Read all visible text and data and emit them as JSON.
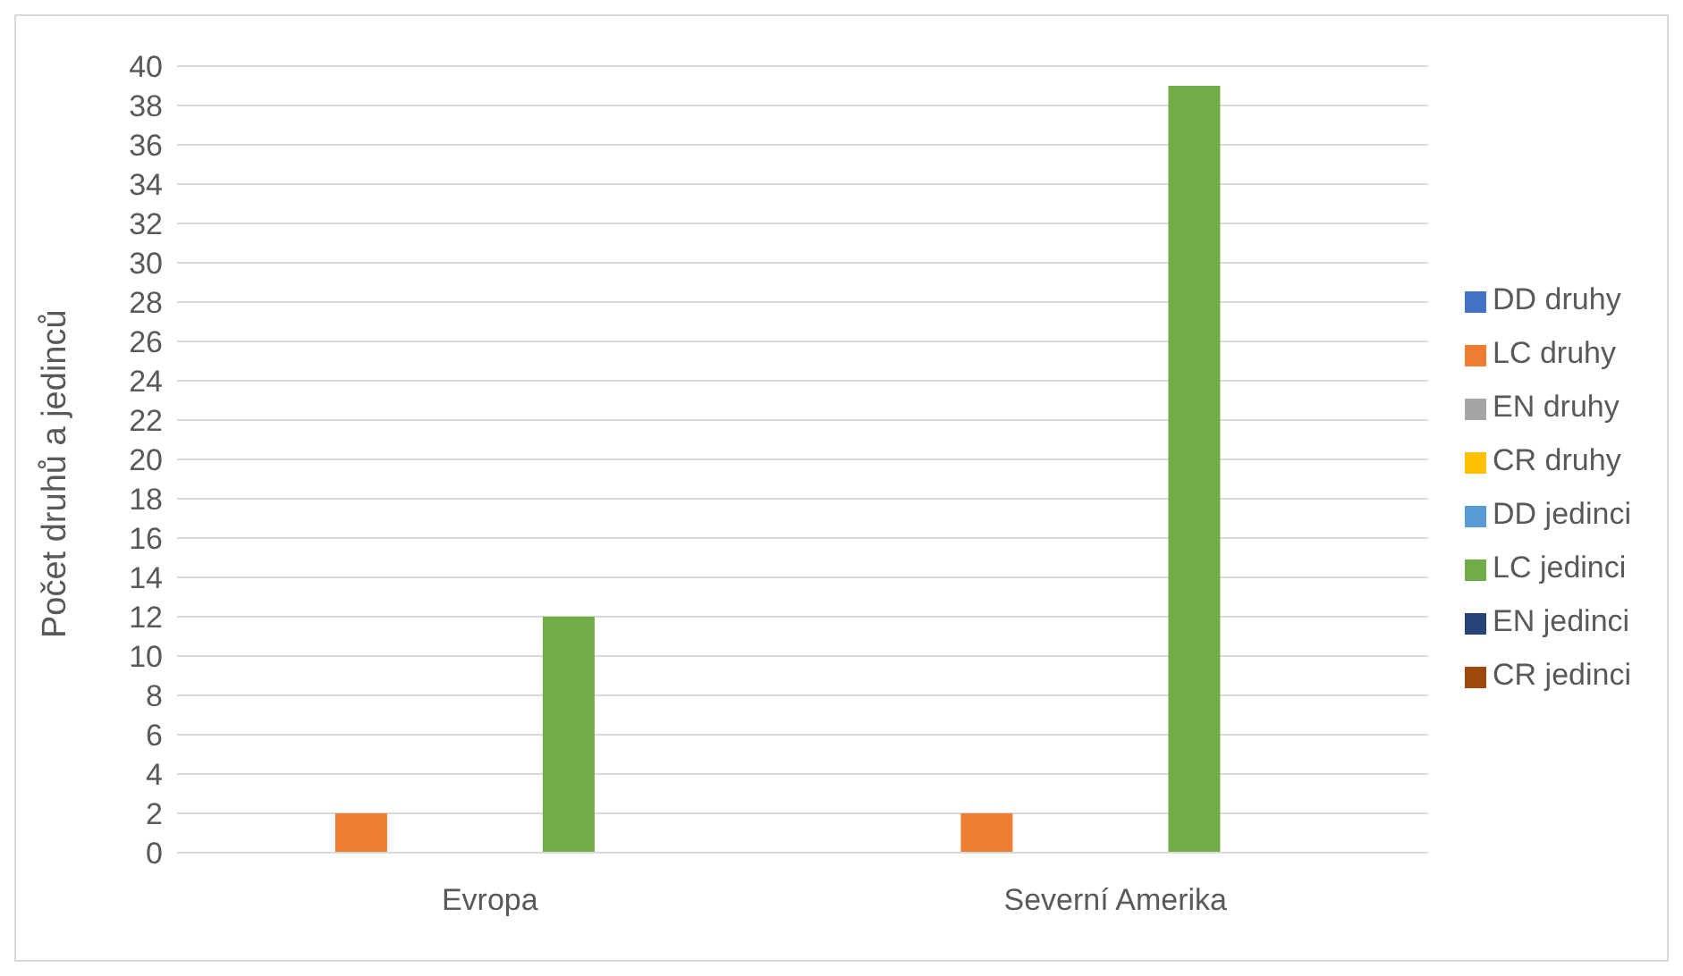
{
  "chart_data": {
    "type": "bar",
    "ylabel": "Počet druhů a jedinců",
    "categories": [
      "Evropa",
      "Severní Amerika"
    ],
    "series": [
      {
        "name": "DD druhy",
        "color": "#4472c4",
        "values": [
          0,
          0
        ]
      },
      {
        "name": "LC druhy",
        "color": "#ed7d31",
        "values": [
          2,
          2
        ]
      },
      {
        "name": "EN druhy",
        "color": "#a5a5a5",
        "values": [
          0,
          0
        ]
      },
      {
        "name": "CR druhy",
        "color": "#ffc000",
        "values": [
          0,
          0
        ]
      },
      {
        "name": "DD jedinci",
        "color": "#5b9bd5",
        "values": [
          0,
          0
        ]
      },
      {
        "name": "LC jedinci",
        "color": "#70ad47",
        "values": [
          12,
          39
        ]
      },
      {
        "name": "EN jedinci",
        "color": "#264478",
        "values": [
          0,
          0
        ]
      },
      {
        "name": "CR jedinci",
        "color": "#9e480e",
        "values": [
          0,
          0
        ]
      }
    ],
    "ylim": [
      0,
      40
    ],
    "yticks": [
      0,
      2,
      4,
      6,
      8,
      10,
      12,
      14,
      16,
      18,
      20,
      22,
      24,
      26,
      28,
      30,
      32,
      34,
      36,
      38,
      40
    ],
    "grid": "y",
    "legend": "right"
  }
}
